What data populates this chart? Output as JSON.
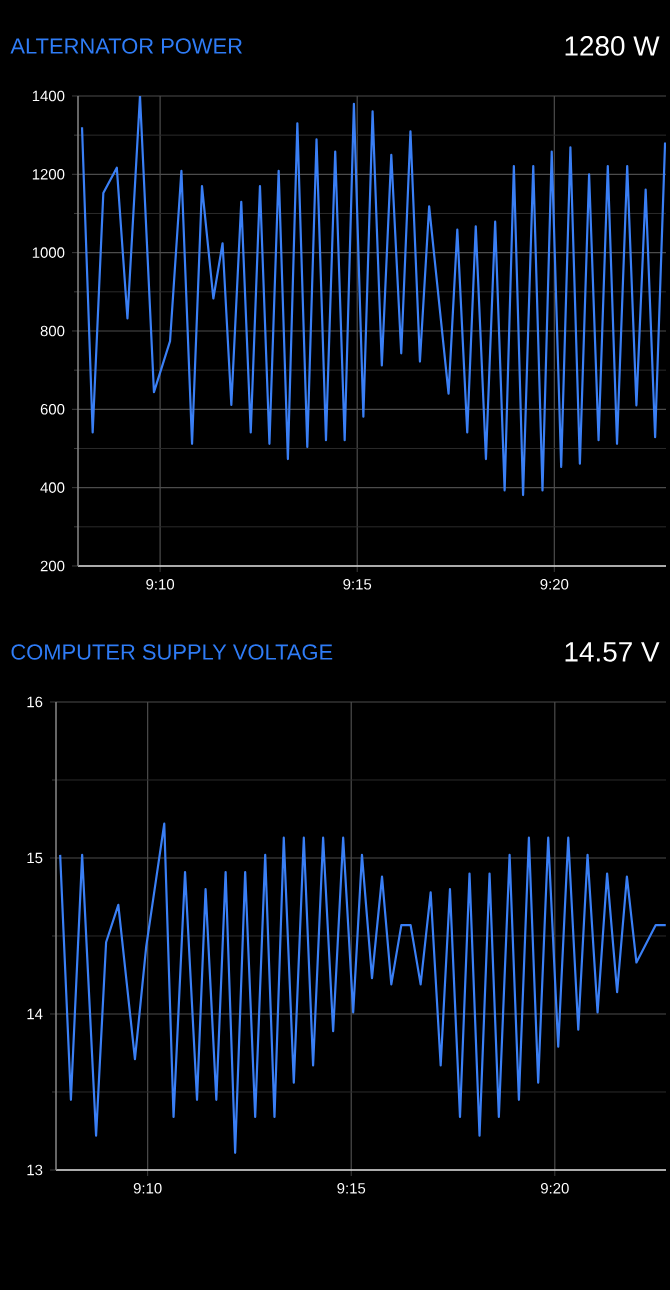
{
  "chart_data": [
    {
      "type": "line",
      "title": "ALTERNATOR POWER",
      "subtitle": "1280 W",
      "color": "#3a7ff5",
      "grid": true,
      "xlim": [
        9.132,
        9.3805
      ],
      "xticks": [
        {
          "value": 9.1667,
          "label": "9:10"
        },
        {
          "value": 9.25,
          "label": "9:15"
        },
        {
          "value": 9.3333,
          "label": "9:20"
        }
      ],
      "ylim": [
        200,
        1400
      ],
      "yticks": [
        200,
        400,
        600,
        800,
        1000,
        1200,
        1400
      ],
      "x": [
        9.1337,
        9.1382,
        9.1427,
        9.1484,
        9.1529,
        9.1582,
        9.1641,
        9.1709,
        9.1757,
        9.1802,
        9.1844,
        9.1892,
        9.1931,
        9.1968,
        9.201,
        9.205,
        9.2089,
        9.2129,
        9.2168,
        9.2207,
        9.2247,
        9.2289,
        9.2328,
        9.2368,
        9.2407,
        9.2447,
        9.2486,
        9.2526,
        9.2565,
        9.2604,
        9.2644,
        9.2686,
        9.2725,
        9.2765,
        9.2804,
        9.2886,
        9.2923,
        9.2965,
        9.3001,
        9.3044,
        9.3083,
        9.3123,
        9.3162,
        9.3201,
        9.3244,
        9.3283,
        9.3322,
        9.3362,
        9.3401,
        9.3441,
        9.348,
        9.352,
        9.3559,
        9.3598,
        9.3641,
        9.368,
        9.3719,
        9.3759,
        9.3801
      ],
      "values": [
        1320,
        541,
        1152,
        1217,
        832,
        1400,
        644,
        774,
        1209,
        512,
        1170,
        883,
        1024,
        611,
        1130,
        541,
        1170,
        512,
        1209,
        473,
        1330,
        504,
        1289,
        521,
        1258,
        521,
        1380,
        581,
        1361,
        712,
        1250,
        743,
        1310,
        722,
        1118,
        640,
        1059,
        541,
        1067,
        473,
        1079,
        393,
        1221,
        381,
        1221,
        393,
        1258,
        453,
        1269,
        461,
        1200,
        521,
        1221,
        512,
        1221,
        610,
        1161,
        529,
        1281
      ]
    },
    {
      "type": "line",
      "title": "COMPUTER SUPPLY VOLTAGE",
      "subtitle": "14.57 V",
      "color": "#3a7ff5",
      "grid": true,
      "xlim": [
        9.1292,
        9.3788
      ],
      "xticks": [
        {
          "value": 9.1667,
          "label": "9:10"
        },
        {
          "value": 9.25,
          "label": "9:15"
        },
        {
          "value": 9.3333,
          "label": "9:20"
        }
      ],
      "ylim": [
        13,
        16
      ],
      "yticks": [
        13,
        14,
        15,
        16
      ],
      "x": [
        9.1309,
        9.1353,
        9.1399,
        9.1456,
        9.1497,
        9.1547,
        9.1615,
        9.1661,
        9.1735,
        9.1773,
        9.182,
        9.1869,
        9.1904,
        9.1948,
        9.1986,
        9.2025,
        9.2066,
        9.2107,
        9.2148,
        9.2186,
        9.2224,
        9.2265,
        9.2306,
        9.2344,
        9.2385,
        9.2426,
        9.2467,
        9.2508,
        9.2544,
        9.2585,
        9.2626,
        9.2664,
        9.2705,
        9.2743,
        9.2784,
        9.2825,
        9.2866,
        9.2904,
        9.2945,
        9.2984,
        9.3025,
        9.3066,
        9.3104,
        9.3148,
        9.3186,
        9.3227,
        9.3265,
        9.3306,
        9.3347,
        9.3388,
        9.3429,
        9.3467,
        9.3508,
        9.3547,
        9.3588,
        9.3628,
        9.3667,
        9.3746,
        9.3787
      ],
      "values": [
        15.02,
        13.45,
        15.02,
        13.22,
        14.46,
        14.7,
        13.71,
        14.43,
        15.22,
        13.34,
        14.91,
        13.45,
        14.8,
        13.45,
        14.91,
        13.11,
        14.91,
        13.34,
        15.02,
        13.34,
        15.13,
        13.56,
        15.13,
        13.67,
        15.13,
        13.89,
        15.13,
        14.01,
        15.02,
        14.23,
        14.88,
        14.19,
        14.57,
        14.57,
        14.19,
        14.78,
        13.67,
        14.8,
        13.34,
        14.9,
        13.22,
        14.9,
        13.34,
        15.02,
        13.45,
        15.13,
        13.56,
        15.13,
        13.79,
        15.13,
        13.9,
        15.02,
        14.01,
        14.9,
        14.14,
        14.88,
        14.33,
        14.57,
        14.57
      ]
    }
  ]
}
